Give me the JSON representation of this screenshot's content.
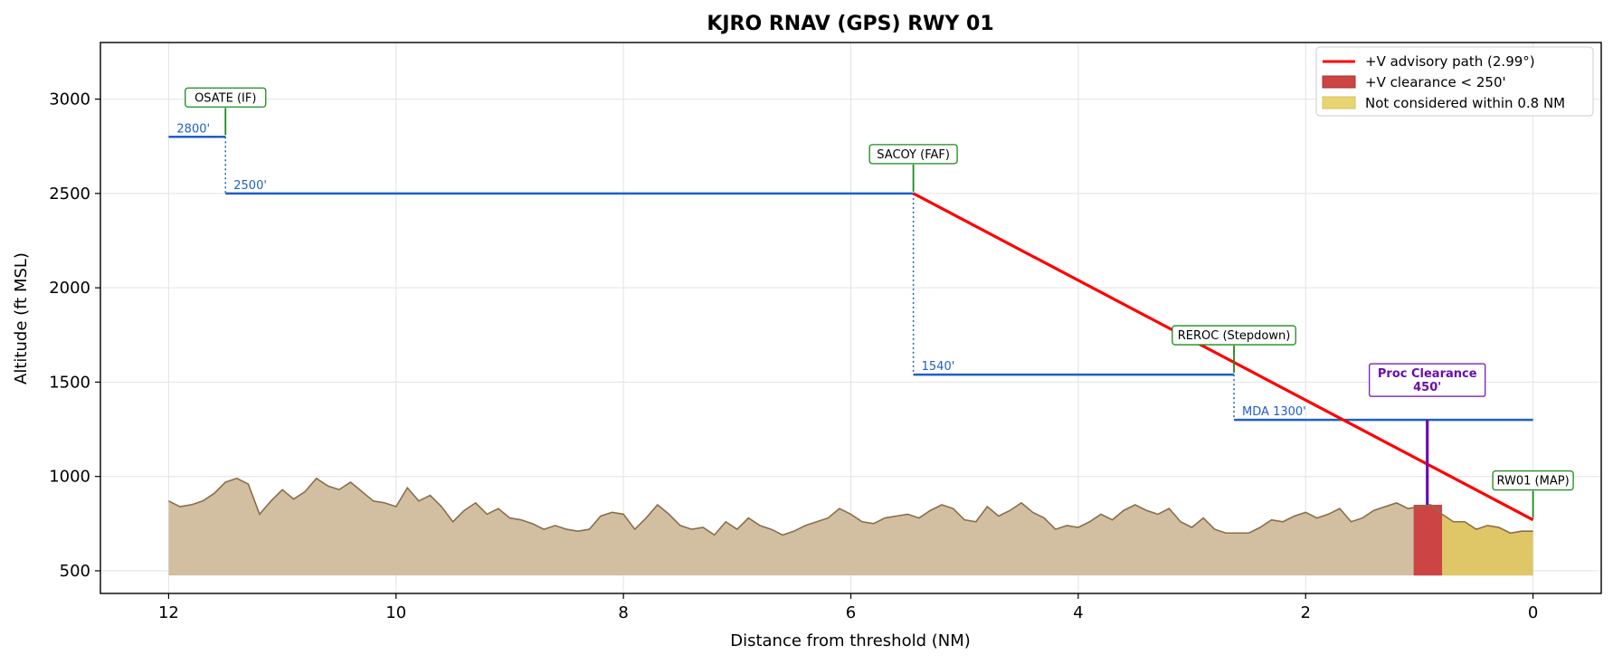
{
  "chart_data": {
    "type": "line",
    "title": "KJRO  RNAV (GPS) RWY 01",
    "xlabel": "Distance from threshold (NM)",
    "ylabel": "Altitude (ft MSL)",
    "xlim": [
      12.6,
      -0.6
    ],
    "ylim": [
      380,
      3300
    ],
    "x_inverted": true,
    "x_ticks": [
      12,
      10,
      8,
      6,
      4,
      2,
      0
    ],
    "y_ticks": [
      500,
      1000,
      1500,
      2000,
      2500,
      3000
    ],
    "grid": true,
    "legend_position": "top-right",
    "colors": {
      "path": "#ff0000",
      "altitude": "#1f5fc8",
      "fix": "#1a8a1a",
      "terrain_fill": "#d2bfa2",
      "terrain_edge": "#8a6e4a",
      "red_zone": "#cc4444",
      "yellow_zone": "#e0c860",
      "proc": "#6a0dad"
    },
    "legend": [
      {
        "label": "+V advisory path (2.99°)",
        "kind": "line",
        "color": "#ff0000"
      },
      {
        "label": "+V clearance < 250'",
        "kind": "patch",
        "color": "#cc4444"
      },
      {
        "label": "Not considered within 0.8 NM",
        "kind": "patch",
        "color": "#e8d572"
      }
    ],
    "fixes": [
      {
        "name": "OSATE (IF)",
        "x": 11.5,
        "alt": 2800
      },
      {
        "name": "SACOY (FAF)",
        "x": 5.45,
        "alt": 2500
      },
      {
        "name": "REROC (Stepdown)",
        "x": 2.63,
        "alt": 1540
      },
      {
        "name": "RW01 (MAP)",
        "x": 0.0,
        "alt": 770
      }
    ],
    "altitude_segments": [
      {
        "label": "2800'",
        "x_start": 12.0,
        "x_end": 11.5,
        "alt": 2800
      },
      {
        "label": "2500'",
        "x_start": 11.5,
        "x_end": 5.45,
        "alt": 2500
      },
      {
        "label": "1540'",
        "x_start": 5.45,
        "x_end": 2.63,
        "alt": 1540
      },
      {
        "label": "MDA 1300'",
        "x_start": 2.63,
        "x_end": 0.0,
        "alt": 1300
      }
    ],
    "advisory_path": {
      "name": "+V advisory path (2.99°)",
      "x": [
        5.45,
        0.0
      ],
      "y": [
        2500,
        770
      ]
    },
    "proc_clearance": {
      "line1": "Proc Clearance",
      "line2": "450'",
      "x": 0.93,
      "y_bottom": 850,
      "y_top": 1300
    },
    "red_zone": {
      "x_start": 1.05,
      "x_end": 0.8,
      "y_top": 850
    },
    "yellow_zone": {
      "x_start": 0.8,
      "x_end": 0.0
    },
    "terrain_base": 475,
    "terrain": {
      "x": [
        12.0,
        11.9,
        11.8,
        11.7,
        11.6,
        11.5,
        11.4,
        11.3,
        11.2,
        11.1,
        11.0,
        10.9,
        10.8,
        10.7,
        10.6,
        10.5,
        10.4,
        10.3,
        10.2,
        10.1,
        10.0,
        9.9,
        9.8,
        9.7,
        9.6,
        9.5,
        9.4,
        9.3,
        9.2,
        9.1,
        9.0,
        8.9,
        8.8,
        8.7,
        8.6,
        8.5,
        8.4,
        8.3,
        8.2,
        8.1,
        8.0,
        7.9,
        7.8,
        7.7,
        7.6,
        7.5,
        7.4,
        7.3,
        7.2,
        7.1,
        7.0,
        6.9,
        6.8,
        6.7,
        6.6,
        6.5,
        6.4,
        6.3,
        6.2,
        6.1,
        6.0,
        5.9,
        5.8,
        5.7,
        5.6,
        5.5,
        5.4,
        5.3,
        5.2,
        5.1,
        5.0,
        4.9,
        4.8,
        4.7,
        4.6,
        4.5,
        4.4,
        4.3,
        4.2,
        4.1,
        4.0,
        3.9,
        3.8,
        3.7,
        3.6,
        3.5,
        3.4,
        3.3,
        3.2,
        3.1,
        3.0,
        2.9,
        2.8,
        2.7,
        2.6,
        2.5,
        2.4,
        2.3,
        2.2,
        2.1,
        2.0,
        1.9,
        1.8,
        1.7,
        1.6,
        1.5,
        1.4,
        1.3,
        1.2,
        1.1,
        1.0,
        0.9,
        0.8,
        0.7,
        0.6,
        0.5,
        0.4,
        0.3,
        0.2,
        0.1,
        0.0
      ],
      "y": [
        870,
        840,
        850,
        870,
        910,
        970,
        990,
        960,
        800,
        870,
        930,
        880,
        920,
        990,
        950,
        930,
        970,
        920,
        870,
        860,
        840,
        940,
        870,
        900,
        840,
        760,
        820,
        860,
        800,
        830,
        780,
        770,
        750,
        720,
        740,
        720,
        710,
        720,
        790,
        810,
        800,
        720,
        780,
        850,
        800,
        740,
        720,
        730,
        690,
        760,
        720,
        780,
        740,
        720,
        690,
        710,
        740,
        760,
        780,
        830,
        800,
        760,
        750,
        780,
        790,
        800,
        780,
        820,
        850,
        830,
        770,
        760,
        840,
        790,
        820,
        860,
        810,
        780,
        720,
        740,
        730,
        760,
        800,
        770,
        820,
        850,
        820,
        800,
        830,
        760,
        730,
        780,
        720,
        700,
        700,
        700,
        730,
        770,
        760,
        790,
        810,
        780,
        800,
        830,
        760,
        780,
        820,
        840,
        860,
        830,
        840,
        850,
        800,
        760,
        760,
        720,
        740,
        730,
        700,
        710,
        710
      ]
    }
  }
}
